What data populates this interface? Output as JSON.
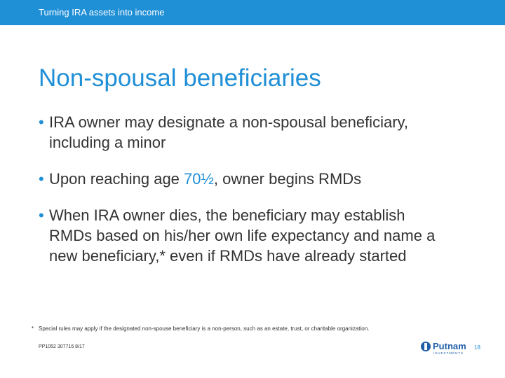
{
  "header": {
    "title": "Turning IRA assets into income"
  },
  "title": "Non-spousal beneficiaries",
  "bullets": [
    [
      "IRA owner may designate a non-spousal beneficiary, including a minor"
    ],
    [
      "Upon reaching age ",
      "70½",
      ", owner begins RMDs"
    ],
    [
      "When IRA owner dies, the beneficiary may establish RMDs based on his/her own life expectancy and name a new beneficiary,* even if RMDs have already started"
    ]
  ],
  "footnote": {
    "marker": "*",
    "text": "Special rules may apply if the designated non-spouse beneficiary is a non-person, such as an estate, trust, or charitable organization."
  },
  "footer": {
    "code": "PP1052 307716 8/17",
    "logo": "Putnam",
    "logo_sub": "INVESTMENTS",
    "page": "18"
  }
}
